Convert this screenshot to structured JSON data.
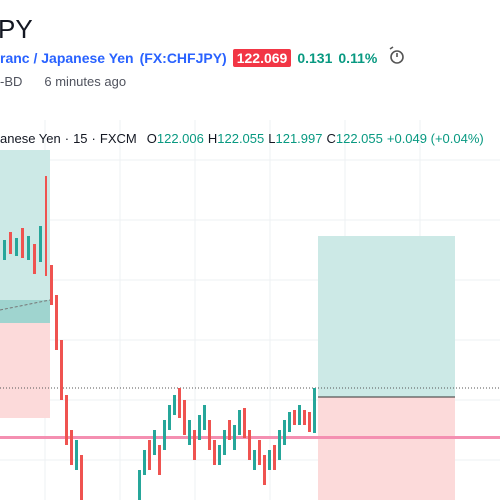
{
  "header": {
    "symbol": "PY",
    "name": "ranc / Japanese Yen",
    "ticker": "(FX:CHFJPY)",
    "price": "122.069",
    "change": "0.131",
    "change_pct": "0.11%",
    "exchange": "-BD",
    "updated": "6 minutes ago"
  },
  "legend": {
    "name": "anese Yen",
    "interval": "15",
    "source": "FXCM",
    "ohlc": [
      {
        "label": "O",
        "value": "122.006"
      },
      {
        "label": "H",
        "value": "122.055"
      },
      {
        "label": "L",
        "value": "121.997"
      },
      {
        "label": "C",
        "value": "122.055"
      }
    ],
    "change": "+0.049 (+0.04%)"
  }
}
